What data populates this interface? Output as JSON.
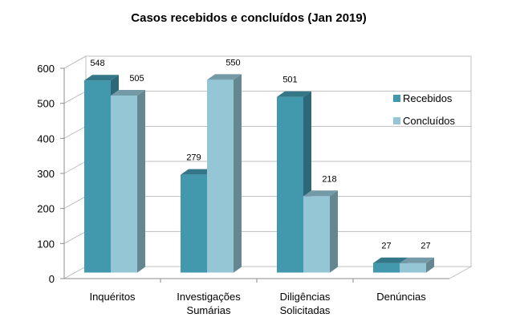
{
  "chart_data": {
    "type": "bar",
    "title": "Casos recebidos e concluídos (Jan 2019)",
    "categories": [
      [
        "Inquéritos"
      ],
      [
        "Investigações",
        "Sumárias"
      ],
      [
        "Diligências",
        "Solicitadas"
      ],
      [
        "Denúncias"
      ]
    ],
    "series": [
      {
        "name": "Recebidos",
        "values": [
          548,
          279,
          501,
          27
        ],
        "color": "#4299AE"
      },
      {
        "name": "Concluídos",
        "values": [
          505,
          550,
          218,
          27
        ],
        "color": "#95C6D6"
      }
    ],
    "ylim": [
      0,
      600
    ],
    "y_ticks": [
      0,
      100,
      200,
      300,
      400,
      500,
      600
    ],
    "xlabel": "",
    "ylabel": "",
    "grid": true,
    "legend_position": "right",
    "three_d": true
  }
}
